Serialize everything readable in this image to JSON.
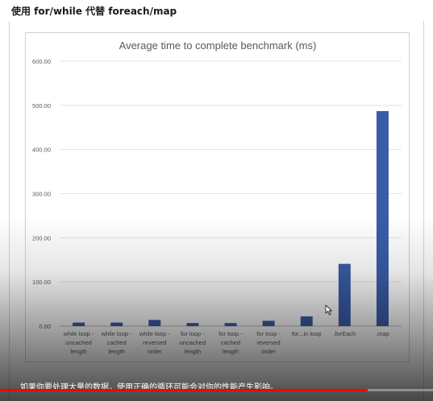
{
  "page": {
    "heading": "使用 for/while 代替 foreach/map",
    "caption": "如果你要处理大量的数据，使用正确的循环可能会对你的性能产生影响。"
  },
  "player": {
    "progress_fraction": 0.85,
    "progress_color": "#ff0000"
  },
  "cursor": {
    "icon": "arrow-cursor-icon"
  },
  "chart_data": {
    "type": "bar",
    "title": "Average time to complete benchmark (ms)",
    "xlabel": "",
    "ylabel": "",
    "ylim": [
      0,
      600
    ],
    "yticks": [
      "0.00",
      "100.00",
      "200.00",
      "300.00",
      "400.00",
      "500.00",
      "600.00"
    ],
    "grid": true,
    "legend": "none",
    "bar_color": "#3a5da8",
    "categories": [
      [
        "while loop -",
        "uncached",
        "length"
      ],
      [
        "while loop -",
        "cached",
        "length"
      ],
      [
        "while loop -",
        "reversed",
        "order"
      ],
      [
        "for loop -",
        "uncached",
        "length"
      ],
      [
        "for loop -",
        "cached",
        "length"
      ],
      [
        "for loop -",
        "reversed",
        "order"
      ],
      [
        "for...in loop"
      ],
      [
        ".forEach"
      ],
      [
        ".map"
      ]
    ],
    "values": [
      8,
      8,
      14,
      7,
      7,
      12,
      22,
      141,
      487
    ]
  }
}
